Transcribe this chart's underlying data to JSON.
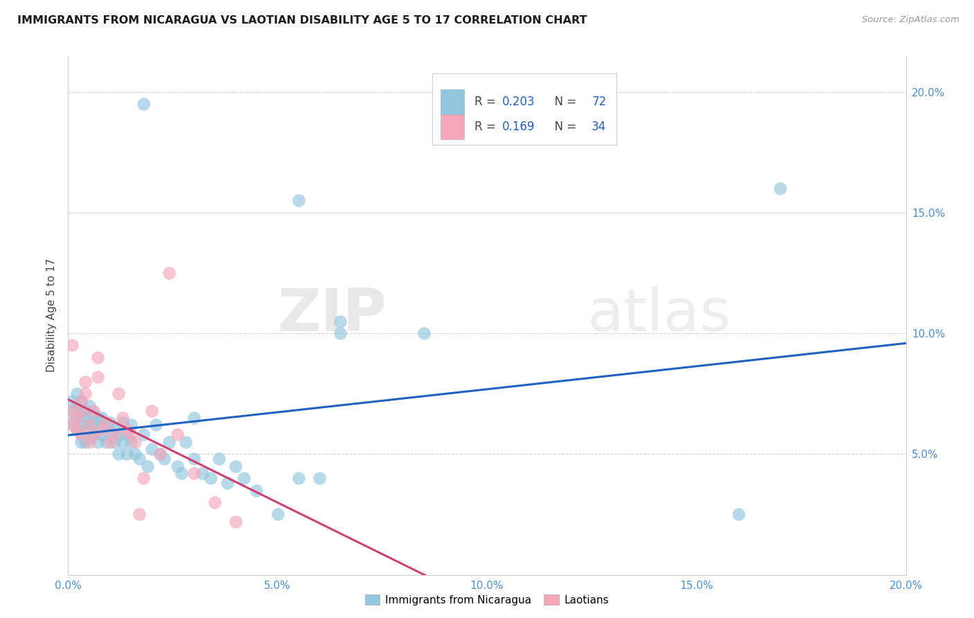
{
  "title": "IMMIGRANTS FROM NICARAGUA VS LAOTIAN DISABILITY AGE 5 TO 17 CORRELATION CHART",
  "source": "Source: ZipAtlas.com",
  "ylabel": "Disability Age 5 to 17",
  "xlim": [
    0.0,
    0.2
  ],
  "ylim": [
    0.0,
    0.215
  ],
  "x_ticks": [
    0.0,
    0.05,
    0.1,
    0.15,
    0.2
  ],
  "x_tick_labels": [
    "0.0%",
    "5.0%",
    "10.0%",
    "15.0%",
    "20.0%"
  ],
  "y_ticks": [
    0.05,
    0.1,
    0.15,
    0.2
  ],
  "y_tick_labels": [
    "5.0%",
    "10.0%",
    "15.0%",
    "20.0%"
  ],
  "legend1_r": "0.203",
  "legend1_n": "72",
  "legend2_r": "0.169",
  "legend2_n": "34",
  "color_blue": "#92c5de",
  "color_pink": "#f4a7b9",
  "line_blue": "#2060c0",
  "line_pink": "#d04070",
  "watermark_color": "#d8d8d8",
  "blue_x": [
    0.001,
    0.001,
    0.001,
    0.002,
    0.002,
    0.002,
    0.002,
    0.003,
    0.003,
    0.003,
    0.003,
    0.003,
    0.004,
    0.004,
    0.004,
    0.004,
    0.005,
    0.005,
    0.005,
    0.006,
    0.006,
    0.006,
    0.007,
    0.007,
    0.007,
    0.008,
    0.008,
    0.009,
    0.009,
    0.01,
    0.01,
    0.011,
    0.011,
    0.012,
    0.012,
    0.013,
    0.013,
    0.014,
    0.014,
    0.015,
    0.015,
    0.016,
    0.017,
    0.018,
    0.019,
    0.02,
    0.021,
    0.022,
    0.023,
    0.024,
    0.026,
    0.027,
    0.028,
    0.03,
    0.032,
    0.034,
    0.036,
    0.038,
    0.04,
    0.042,
    0.045,
    0.05,
    0.055,
    0.06,
    0.065,
    0.055,
    0.065,
    0.085,
    0.16,
    0.17,
    0.018,
    0.03
  ],
  "blue_y": [
    0.072,
    0.063,
    0.068,
    0.065,
    0.07,
    0.06,
    0.075,
    0.058,
    0.067,
    0.072,
    0.055,
    0.062,
    0.068,
    0.06,
    0.055,
    0.065,
    0.063,
    0.057,
    0.07,
    0.062,
    0.058,
    0.067,
    0.055,
    0.065,
    0.06,
    0.058,
    0.065,
    0.055,
    0.062,
    0.058,
    0.063,
    0.055,
    0.06,
    0.058,
    0.05,
    0.055,
    0.063,
    0.05,
    0.058,
    0.055,
    0.062,
    0.05,
    0.048,
    0.058,
    0.045,
    0.052,
    0.062,
    0.05,
    0.048,
    0.055,
    0.045,
    0.042,
    0.055,
    0.048,
    0.042,
    0.04,
    0.048,
    0.038,
    0.045,
    0.04,
    0.035,
    0.025,
    0.04,
    0.04,
    0.1,
    0.155,
    0.105,
    0.1,
    0.025,
    0.16,
    0.195,
    0.065
  ],
  "pink_x": [
    0.001,
    0.001,
    0.001,
    0.002,
    0.002,
    0.003,
    0.003,
    0.003,
    0.004,
    0.004,
    0.005,
    0.005,
    0.006,
    0.006,
    0.007,
    0.007,
    0.008,
    0.009,
    0.01,
    0.011,
    0.012,
    0.013,
    0.014,
    0.015,
    0.016,
    0.017,
    0.018,
    0.02,
    0.022,
    0.024,
    0.026,
    0.03,
    0.035,
    0.04
  ],
  "pink_y": [
    0.062,
    0.068,
    0.095,
    0.065,
    0.06,
    0.058,
    0.068,
    0.072,
    0.075,
    0.08,
    0.062,
    0.055,
    0.068,
    0.058,
    0.082,
    0.09,
    0.06,
    0.063,
    0.055,
    0.058,
    0.075,
    0.065,
    0.06,
    0.058,
    0.055,
    0.025,
    0.04,
    0.068,
    0.05,
    0.125,
    0.058,
    0.042,
    0.03,
    0.022
  ]
}
